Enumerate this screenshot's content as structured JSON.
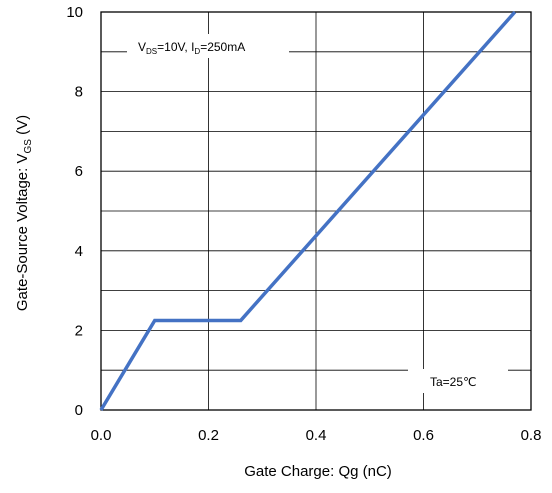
{
  "chart_data": {
    "type": "line",
    "title": "",
    "xlabel": "Gate Charge: Qg (nC)",
    "ylabel_main": "Gate-Source Voltage: V",
    "ylabel_sub": "GS",
    "ylabel_tail": " (V)",
    "xlim": [
      0,
      0.8
    ],
    "ylim": [
      0,
      10
    ],
    "x_ticks": [
      0.0,
      0.2,
      0.4,
      0.6,
      0.8
    ],
    "x_tick_labels": [
      "0.0",
      "0.2",
      "0.4",
      "0.6",
      "0.8"
    ],
    "y_ticks": [
      0,
      2,
      4,
      6,
      8,
      10
    ],
    "y_tick_labels": [
      "0",
      "2",
      "4",
      "6",
      "8",
      "10"
    ],
    "grid": true,
    "series": [
      {
        "color": "#4472C4",
        "x": [
          0.0,
          0.1,
          0.26,
          0.77
        ],
        "y": [
          0.0,
          2.25,
          2.25,
          10.0
        ]
      }
    ],
    "annotations": {
      "conditions": {
        "v": "V",
        "v_sub": "DS",
        "v_val": "=10V, I",
        "i_sub": "D",
        "i_val": "=250mA"
      },
      "temperature": "Ta=25℃"
    }
  }
}
